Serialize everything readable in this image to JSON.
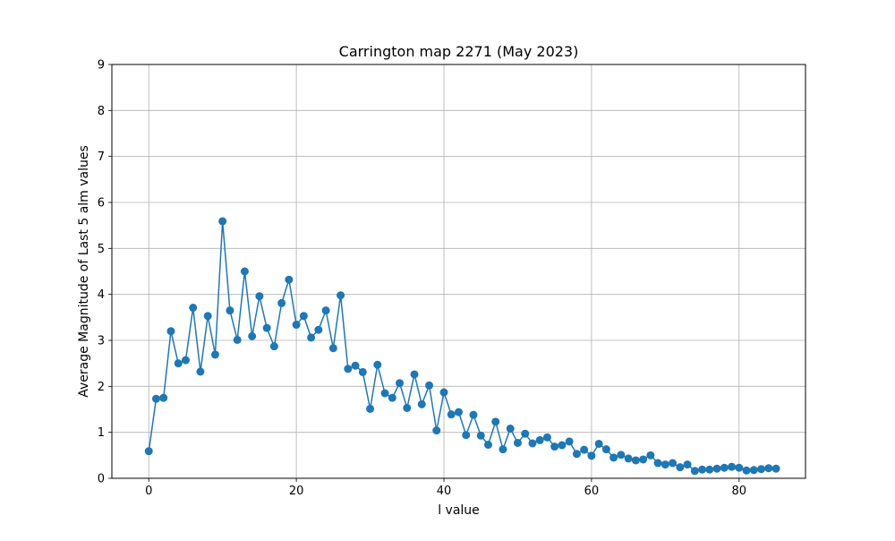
{
  "colors": {
    "series": "#1f77b4",
    "grid": "#b0b0b0",
    "axis": "#000000",
    "background": "#ffffff"
  },
  "chart_data": {
    "type": "line",
    "title": "Carrington map 2271 (May 2023)",
    "xlabel": "l value",
    "ylabel": "Average Magnitude of Last 5 alm values",
    "xlim": [
      -5,
      89
    ],
    "ylim": [
      0,
      9
    ],
    "xticks": [
      0,
      20,
      40,
      60,
      80
    ],
    "yticks": [
      0,
      1,
      2,
      3,
      4,
      5,
      6,
      7,
      8,
      9
    ],
    "grid": true,
    "marker": "circle",
    "series": [
      {
        "name": "",
        "x": [
          0,
          1,
          2,
          3,
          4,
          5,
          6,
          7,
          8,
          9,
          10,
          11,
          12,
          13,
          14,
          15,
          16,
          17,
          18,
          19,
          20,
          21,
          22,
          23,
          24,
          25,
          26,
          27,
          28,
          29,
          30,
          31,
          32,
          33,
          34,
          35,
          36,
          37,
          38,
          39,
          40,
          41,
          42,
          43,
          44,
          45,
          46,
          47,
          48,
          49,
          50,
          51,
          52,
          53,
          54,
          55,
          56,
          57,
          58,
          59,
          60,
          61,
          62,
          63,
          64,
          65,
          66,
          67,
          68,
          69,
          70,
          71,
          72,
          73,
          74,
          75,
          76,
          77,
          78,
          79,
          80,
          81,
          82,
          83,
          84,
          85
        ],
        "y": [
          0.59,
          1.73,
          1.75,
          3.2,
          2.5,
          2.57,
          3.71,
          2.32,
          3.53,
          2.69,
          5.59,
          3.65,
          3.01,
          4.5,
          3.09,
          3.96,
          3.27,
          2.87,
          3.81,
          4.32,
          3.34,
          3.53,
          3.06,
          3.23,
          3.65,
          2.83,
          3.98,
          2.38,
          2.45,
          2.31,
          1.51,
          2.47,
          1.85,
          1.75,
          2.07,
          1.53,
          2.26,
          1.61,
          2.02,
          1.04,
          1.87,
          1.39,
          1.44,
          0.94,
          1.38,
          0.93,
          0.73,
          1.23,
          0.63,
          1.08,
          0.77,
          0.97,
          0.76,
          0.83,
          0.89,
          0.69,
          0.72,
          0.8,
          0.53,
          0.62,
          0.49,
          0.75,
          0.63,
          0.45,
          0.51,
          0.43,
          0.39,
          0.41,
          0.5,
          0.33,
          0.3,
          0.33,
          0.24,
          0.3,
          0.16,
          0.19,
          0.19,
          0.21,
          0.23,
          0.25,
          0.23,
          0.17,
          0.18,
          0.2,
          0.22,
          0.21
        ]
      }
    ]
  }
}
